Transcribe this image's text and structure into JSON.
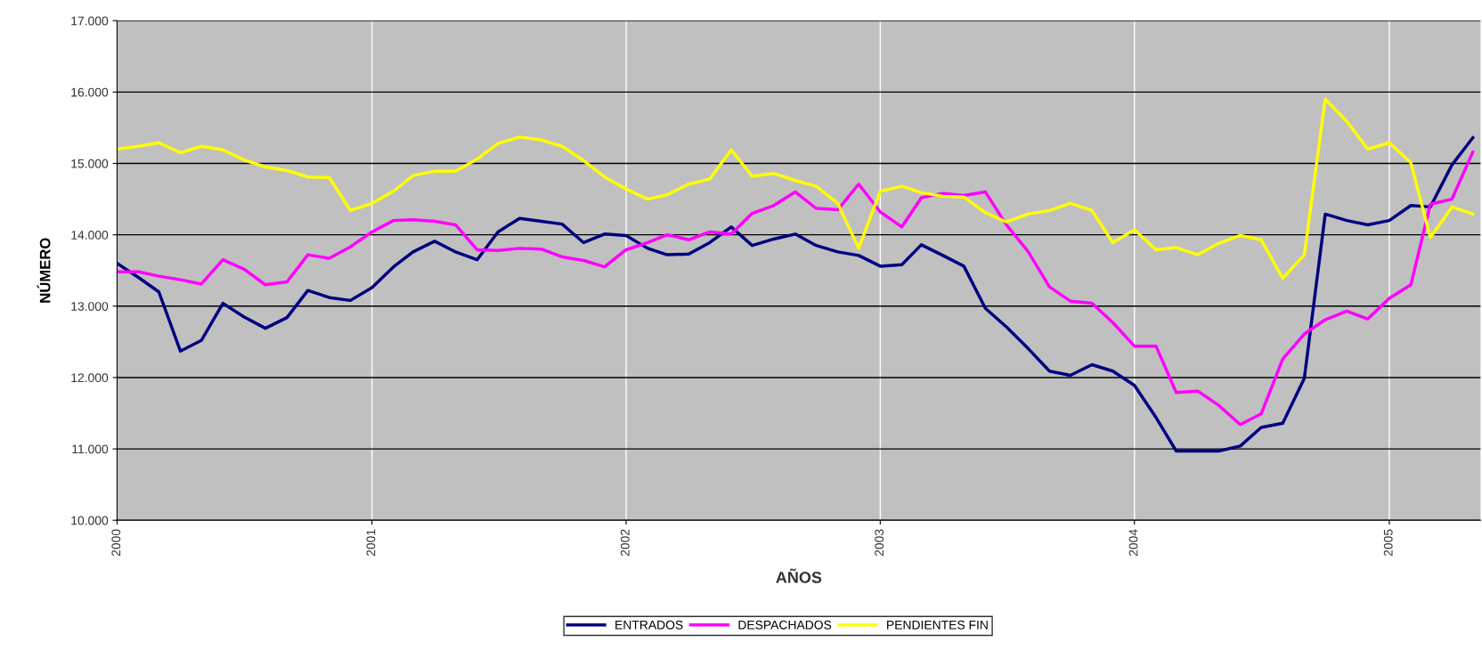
{
  "chart_data": {
    "type": "line",
    "xlabel": "AÑOS",
    "ylabel": "NÚMERO",
    "x": [
      "2000-01",
      "2000-02",
      "2000-03",
      "2000-04",
      "2000-05",
      "2000-06",
      "2000-07",
      "2000-08",
      "2000-09",
      "2000-10",
      "2000-11",
      "2000-12",
      "2001-01",
      "2001-02",
      "2001-03",
      "2001-04",
      "2001-05",
      "2001-06",
      "2001-07",
      "2001-08",
      "2001-09",
      "2001-10",
      "2001-11",
      "2001-12",
      "2002-01",
      "2002-02",
      "2002-03",
      "2002-04",
      "2002-05",
      "2002-06",
      "2002-07",
      "2002-08",
      "2002-09",
      "2002-10",
      "2002-11",
      "2002-12",
      "2003-01",
      "2003-02",
      "2003-03",
      "2003-04",
      "2003-05",
      "2003-06",
      "2003-07",
      "2003-08",
      "2003-09",
      "2003-10",
      "2003-11",
      "2003-12",
      "2004-01",
      "2004-02",
      "2004-03",
      "2004-04",
      "2004-05",
      "2004-06",
      "2004-07",
      "2004-08",
      "2004-09",
      "2004-10",
      "2004-11",
      "2004-12",
      "2005-01",
      "2005-02",
      "2005-03",
      "2005-04",
      "2005-05"
    ],
    "series": [
      {
        "name": "ENTRADOS",
        "color": "#000080",
        "values": [
          13600,
          13400,
          13200,
          12370,
          12520,
          13040,
          12850,
          12690,
          12840,
          13220,
          13120,
          13080,
          13260,
          13550,
          13760,
          13910,
          13760,
          13650,
          14040,
          14230,
          14190,
          14150,
          13890,
          14010,
          13990,
          13810,
          13720,
          13730,
          13890,
          14110,
          13850,
          13940,
          14010,
          13850,
          13760,
          13710,
          13560,
          13580,
          13860,
          13710,
          13560,
          12970,
          12710,
          12410,
          12090,
          12030,
          12180,
          12090,
          11890,
          11440,
          10970,
          10970,
          10970,
          11040,
          11300,
          11360,
          11990,
          14290,
          14200,
          14140,
          14200,
          14410,
          14390,
          14980,
          15360
        ]
      },
      {
        "name": "DESPACHADOS",
        "color": "#ff00ff",
        "values": [
          13480,
          13480,
          13420,
          13370,
          13310,
          13650,
          13520,
          13300,
          13340,
          13720,
          13670,
          13830,
          14040,
          14200,
          14210,
          14190,
          14140,
          13790,
          13780,
          13810,
          13800,
          13690,
          13640,
          13550,
          13790,
          13890,
          14000,
          13930,
          14040,
          14010,
          14300,
          14410,
          14600,
          14370,
          14350,
          14710,
          14320,
          14110,
          14520,
          14580,
          14550,
          14600,
          14140,
          13770,
          13270,
          13070,
          13040,
          12770,
          12440,
          12440,
          11790,
          11810,
          11610,
          11340,
          11490,
          12260,
          12610,
          12810,
          12930,
          12820,
          13110,
          13300,
          14430,
          14500,
          15160
        ]
      },
      {
        "name": "PENDIENTES FIN",
        "color": "#ffff00",
        "values": [
          15200,
          15240,
          15290,
          15150,
          15240,
          15190,
          15050,
          14950,
          14900,
          14810,
          14800,
          14340,
          14440,
          14610,
          14830,
          14890,
          14890,
          15060,
          15280,
          15370,
          15330,
          15240,
          15040,
          14810,
          14640,
          14500,
          14560,
          14710,
          14780,
          15190,
          14820,
          14860,
          14760,
          14680,
          14440,
          13810,
          14610,
          14680,
          14590,
          14540,
          14530,
          14310,
          14180,
          14290,
          14340,
          14440,
          14340,
          13890,
          14070,
          13790,
          13820,
          13720,
          13880,
          13990,
          13930,
          13390,
          13720,
          15900,
          15590,
          15200,
          15290,
          15010,
          13960,
          14390,
          14290
        ]
      }
    ],
    "xlim": [
      "2000-01-01",
      "2005-05-12"
    ],
    "xticks": [
      {
        "value": "2000-01-01",
        "label": "2000"
      },
      {
        "value": "2001-01-01",
        "label": "2001"
      },
      {
        "value": "2002-01-01",
        "label": "2002"
      },
      {
        "value": "2003-01-01",
        "label": "2003"
      },
      {
        "value": "2004-01-01",
        "label": "2004"
      },
      {
        "value": "2005-01-01",
        "label": "2005"
      }
    ],
    "ylim": [
      10000,
      17000
    ],
    "yticks": [
      {
        "value": 10000,
        "label": "10.000"
      },
      {
        "value": 11000,
        "label": "11.000"
      },
      {
        "value": 12000,
        "label": "12.000"
      },
      {
        "value": 13000,
        "label": "13.000"
      },
      {
        "value": 14000,
        "label": "14.000"
      },
      {
        "value": 15000,
        "label": "15.000"
      },
      {
        "value": 16000,
        "label": "16.000"
      },
      {
        "value": 17000,
        "label": "17.000"
      }
    ],
    "grid": true,
    "legend": "bottom",
    "marker": "none",
    "line_style": "solid"
  }
}
